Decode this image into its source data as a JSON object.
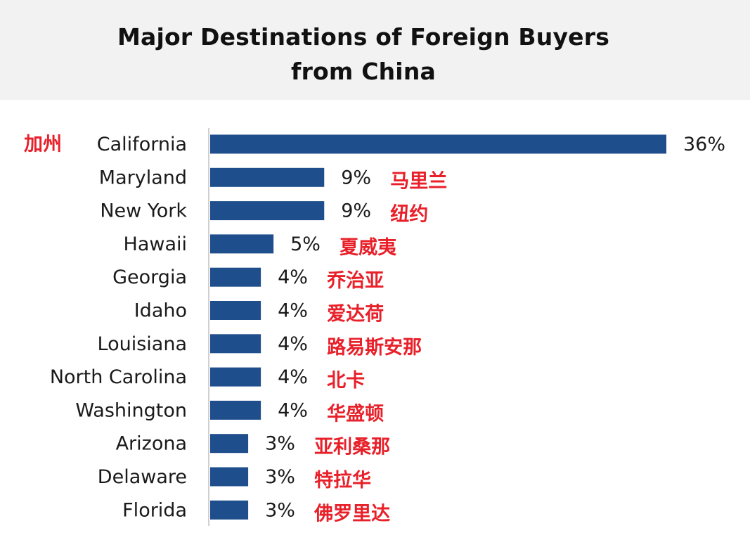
{
  "chart_data": {
    "type": "bar",
    "orientation": "horizontal",
    "title": "Major Destinations of Foreign Buyers from China",
    "title_lines": [
      "Major Destinations of Foreign Buyers",
      "from China"
    ],
    "xlabel": "",
    "ylabel": "",
    "xlim": [
      0,
      36
    ],
    "grid": false,
    "legend": "none",
    "bar_color": "#1f4e8c",
    "annotation_color": "#e8202a",
    "categories": [
      "California",
      "Maryland",
      "New York",
      "Hawaii",
      "Georgia",
      "Idaho",
      "Louisiana",
      "North Carolina",
      "Washington",
      "Arizona",
      "Delaware",
      "Florida"
    ],
    "values": [
      36,
      9,
      9,
      5,
      4,
      4,
      4,
      4,
      4,
      3,
      3,
      3
    ],
    "value_labels": [
      "36%",
      "9%",
      "9%",
      "5%",
      "4%",
      "4%",
      "4%",
      "4%",
      "4%",
      "3%",
      "3%",
      "3%"
    ],
    "chinese_labels": [
      "加州",
      "马里兰",
      "纽约",
      "夏威夷",
      "乔治亚",
      "爱达荷",
      "路易斯安那",
      "北卡",
      "华盛顿",
      "亚利桑那",
      "特拉华",
      "佛罗里达"
    ],
    "chinese_label_placement": [
      "left-of-category",
      "right-of-value",
      "right-of-value",
      "right-of-value",
      "right-of-value",
      "right-of-value",
      "right-of-value",
      "right-of-value",
      "right-of-value",
      "right-of-value",
      "right-of-value",
      "right-of-value"
    ]
  }
}
